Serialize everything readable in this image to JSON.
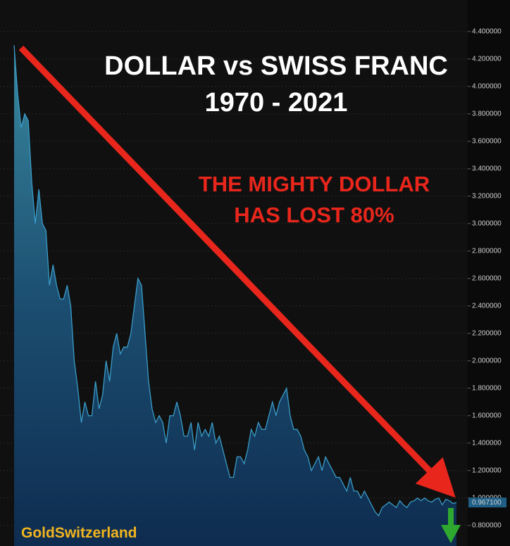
{
  "chart_data": {
    "type": "area",
    "title": "DOLLAR vs SWISS FRANC",
    "subtitle": "1970 - 2021",
    "annotation": [
      "THE MIGHTY DOLLAR",
      "HAS LOST 80%"
    ],
    "watermark": "GoldSwitzerland",
    "color": "#3a9cc8",
    "values": [
      4.3,
      3.95,
      3.7,
      3.8,
      3.75,
      3.3,
      3.0,
      3.25,
      3.0,
      2.95,
      2.55,
      2.7,
      2.55,
      2.45,
      2.45,
      2.55,
      2.4,
      2.0,
      1.8,
      1.55,
      1.7,
      1.6,
      1.6,
      1.85,
      1.65,
      1.75,
      2.0,
      1.85,
      2.1,
      2.2,
      2.05,
      2.1,
      2.1,
      2.2,
      2.4,
      2.6,
      2.55,
      2.2,
      1.85,
      1.65,
      1.55,
      1.6,
      1.55,
      1.4,
      1.6,
      1.6,
      1.7,
      1.6,
      1.45,
      1.45,
      1.55,
      1.35,
      1.55,
      1.45,
      1.5,
      1.45,
      1.55,
      1.4,
      1.45,
      1.35,
      1.25,
      1.15,
      1.15,
      1.3,
      1.3,
      1.25,
      1.35,
      1.5,
      1.45,
      1.55,
      1.5,
      1.5,
      1.6,
      1.7,
      1.6,
      1.7,
      1.75,
      1.8,
      1.6,
      1.5,
      1.5,
      1.45,
      1.35,
      1.3,
      1.2,
      1.25,
      1.3,
      1.2,
      1.3,
      1.25,
      1.2,
      1.15,
      1.15,
      1.1,
      1.05,
      1.15,
      1.05,
      1.05,
      1.0,
      1.05,
      1.0,
      0.95,
      0.9,
      0.87,
      0.93,
      0.95,
      0.97,
      0.95,
      0.93,
      0.98,
      0.95,
      0.93,
      0.97,
      0.98,
      1.0,
      0.98,
      1.0,
      0.98,
      0.97,
      0.99,
      1.0,
      0.95,
      0.99,
      0.98,
      0.96,
      0.9671
    ],
    "last_value_label": "0.967100",
    "ylim": [
      0.65,
      4.63
    ],
    "yticks": [
      {
        "value": 0.8,
        "label": "0.800000"
      },
      {
        "value": 1.0,
        "label": "1.000000"
      },
      {
        "value": 1.2,
        "label": "1.200000"
      },
      {
        "value": 1.4,
        "label": "1.400000"
      },
      {
        "value": 1.6,
        "label": "1.600000"
      },
      {
        "value": 1.8,
        "label": "1.800000"
      },
      {
        "value": 2.0,
        "label": "2.000000"
      },
      {
        "value": 2.2,
        "label": "2.200000"
      },
      {
        "value": 2.4,
        "label": "2.400000"
      },
      {
        "value": 2.6,
        "label": "2.600000"
      },
      {
        "value": 2.8,
        "label": "2.800000"
      },
      {
        "value": 3.0,
        "label": "3.000000"
      },
      {
        "value": 3.2,
        "label": "3.200000"
      },
      {
        "value": 3.4,
        "label": "3.400000"
      },
      {
        "value": 3.6,
        "label": "3.600000"
      },
      {
        "value": 3.8,
        "label": "3.800000"
      },
      {
        "value": 4.0,
        "label": "4.000000"
      },
      {
        "value": 4.2,
        "label": "4.200000"
      },
      {
        "value": 4.4,
        "label": "4.400000"
      }
    ],
    "grid": true
  }
}
